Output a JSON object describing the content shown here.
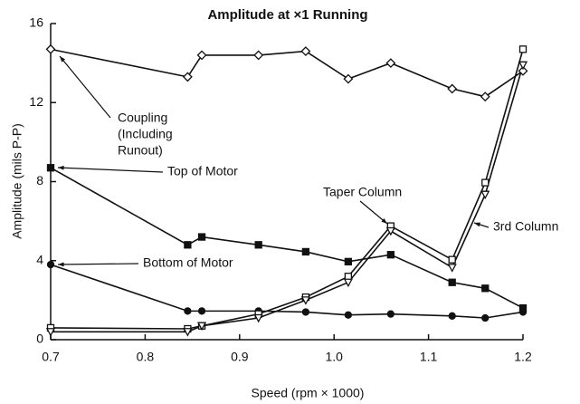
{
  "chart_data": {
    "type": "line",
    "title": "Amplitude at ×1 Running",
    "x_label": "Speed (rpm × 1000)",
    "y_label": "Amplitude (mils P-P)",
    "x": [
      0.7,
      0.845,
      0.86,
      0.92,
      0.97,
      1.015,
      1.06,
      1.125,
      1.16,
      1.2
    ],
    "series": [
      {
        "name": [
          "Coupling",
          "(Including",
          "Runout)"
        ],
        "marker": "diamond-open",
        "color": "#111111",
        "values": [
          14.7,
          13.3,
          14.4,
          14.4,
          14.6,
          13.2,
          14.0,
          12.7,
          12.3,
          13.6
        ]
      },
      {
        "name": [
          "Top of Motor"
        ],
        "marker": "square-filled",
        "color": "#111111",
        "values": [
          8.7,
          4.8,
          5.2,
          4.8,
          4.45,
          3.95,
          4.3,
          2.9,
          2.6,
          1.6
        ]
      },
      {
        "name": [
          "Bottom of Motor"
        ],
        "marker": "circle-filled",
        "color": "#111111",
        "values": [
          3.8,
          1.45,
          1.45,
          1.45,
          1.4,
          1.25,
          1.3,
          1.2,
          1.1,
          1.4
        ]
      },
      {
        "name": [
          "Taper Column"
        ],
        "marker": "square-open",
        "color": "#111111",
        "values": [
          0.6,
          0.55,
          0.7,
          1.3,
          2.15,
          3.2,
          5.75,
          4.05,
          7.95,
          14.7
        ]
      },
      {
        "name": [
          "3rd Column"
        ],
        "marker": "triangle-open",
        "color": "#111111",
        "values": [
          0.4,
          0.4,
          0.7,
          1.1,
          2.0,
          2.9,
          5.5,
          3.65,
          7.35,
          13.9
        ]
      }
    ],
    "xlim": [
      0.7,
      1.2
    ],
    "xticks": [
      0.7,
      0.8,
      0.9,
      {
        "value": 1.0,
        "label": "1.0"
      },
      1.1,
      1.2
    ],
    "ylim": [
      0,
      16
    ],
    "yticks": [
      0,
      4,
      8,
      12,
      16
    ],
    "grid": false
  }
}
